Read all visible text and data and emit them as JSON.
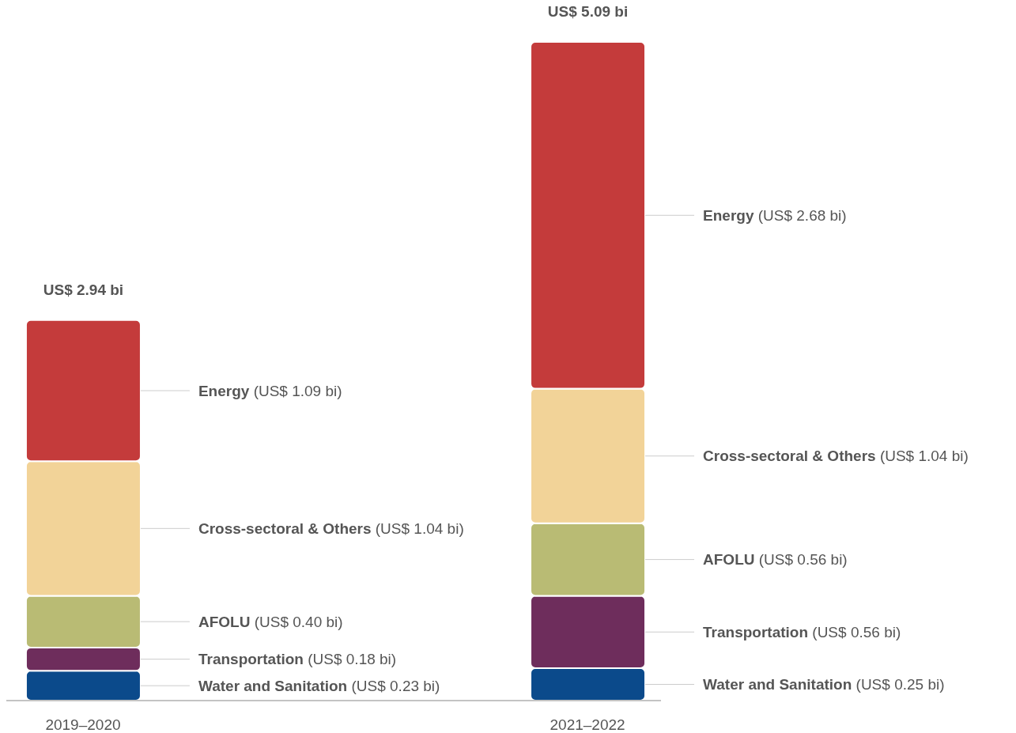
{
  "chart_data": {
    "type": "bar",
    "stacked": true,
    "categories": [
      "2019–2020",
      "2021–2022"
    ],
    "series": [
      {
        "color": "#0b4a8b",
        "values": [
          0.23,
          0.25
        ],
        "value_labels": [
          "Water and Sanitation (US$ 0.23 bi)",
          "Water and Sanitation (US$ 0.25 bi)"
        ]
      },
      {
        "color": "#6e2d5c",
        "values": [
          0.18,
          0.56
        ],
        "value_labels": [
          "Transportation (US$ 0.18 bi)",
          "Transportation (US$ 0.56 bi)"
        ]
      },
      {
        "color": "#b9bb74",
        "values": [
          0.4,
          0.56
        ],
        "value_labels": [
          "AFOLU (US$ 0.40 bi)",
          "AFOLU (US$ 0.56 bi)"
        ]
      },
      {
        "color": "#f2d398",
        "values": [
          1.04,
          1.04
        ],
        "value_labels": [
          "Cross-sectoral & Others (US$ 1.04 bi)",
          "Cross-sectoral & Others (US$ 1.04 bi)"
        ]
      },
      {
        "color": "#c43b3b",
        "values": [
          1.09,
          2.68
        ],
        "value_labels": [
          "Energy (US$ 1.09 bi)",
          "Energy (US$ 2.68 bi)"
        ]
      }
    ],
    "totals": [
      "US$ 2.94 bi",
      "US$ 5.09 bi"
    ]
  }
}
